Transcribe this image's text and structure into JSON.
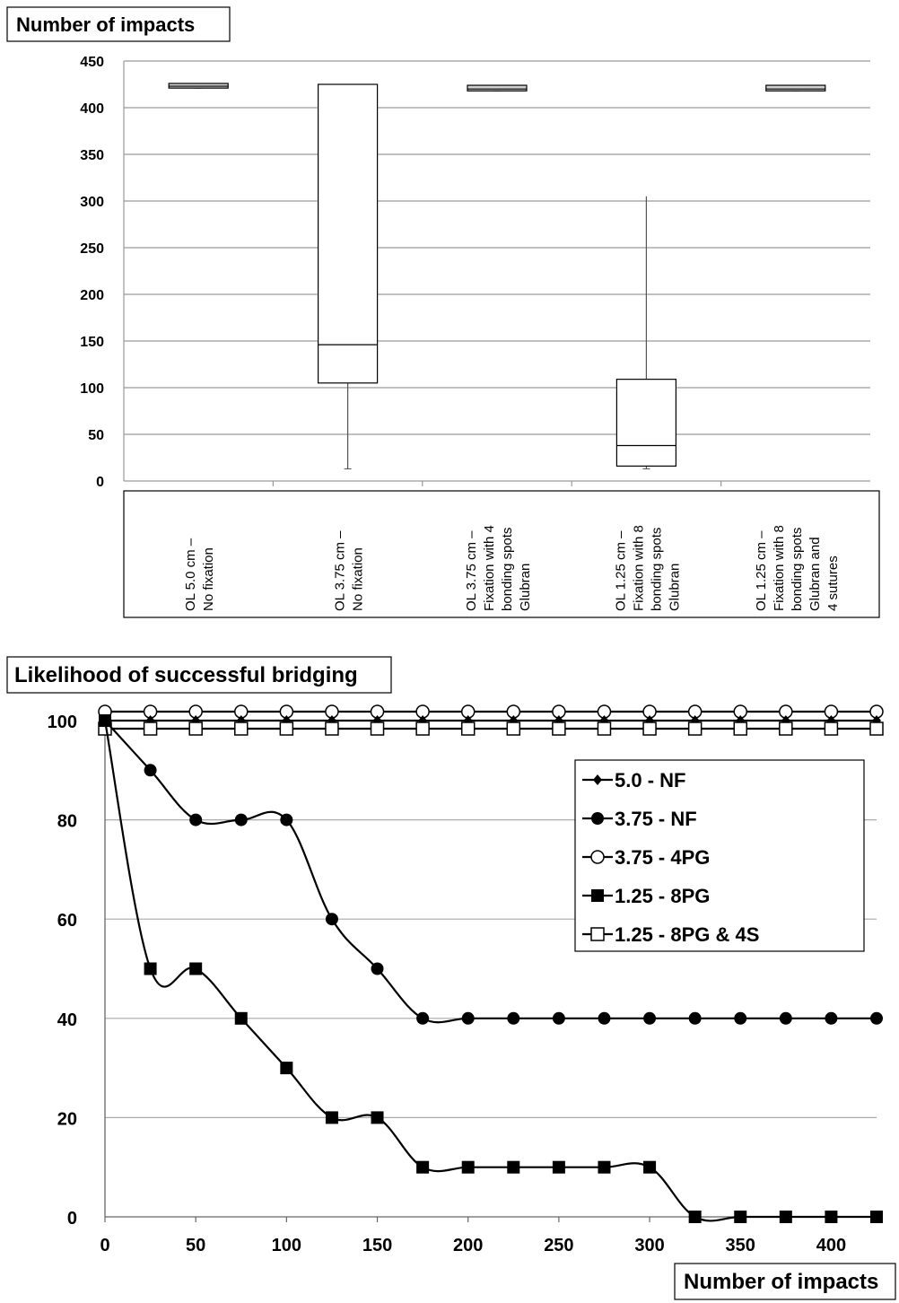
{
  "chart_data": [
    {
      "type": "box",
      "ylabel": "Number of impacts",
      "ylim": [
        0,
        450
      ],
      "yticks": [
        0,
        50,
        100,
        150,
        200,
        250,
        300,
        350,
        400,
        450
      ],
      "grid": true,
      "categories": [
        [
          "OL 5.0 cm –",
          "No fixation"
        ],
        [
          "OL 3.75 cm –",
          "No fixation"
        ],
        [
          "OL 3.75 cm –",
          "Fixation with 4",
          "bonding spots",
          "Glubran"
        ],
        [
          "OL 1.25 cm –",
          "Fixation with 8",
          "bonding spots",
          "Glubran"
        ],
        [
          "OL 1.25 cm –",
          "Fixation with 8",
          "bonding spots",
          "Glubran and",
          "4 sutures"
        ]
      ],
      "boxes": [
        {
          "min": 421,
          "q1": 421,
          "median": 423,
          "q3": 426,
          "max": 426
        },
        {
          "min": 13,
          "q1": 105,
          "median": 146,
          "q3": 425,
          "max": 425
        },
        {
          "min": 418,
          "q1": 418,
          "median": 420,
          "q3": 424,
          "max": 424
        },
        {
          "min": 13,
          "q1": 16,
          "median": 38,
          "q3": 109,
          "max": 305
        },
        {
          "min": 418,
          "q1": 418,
          "median": 420,
          "q3": 424,
          "max": 424
        }
      ]
    },
    {
      "type": "line",
      "ylabel": "Likelihood of successful bridging",
      "xlabel": "Number of impacts",
      "ylim": [
        0,
        100
      ],
      "yticks": [
        0,
        20,
        40,
        60,
        80,
        100
      ],
      "xlim": [
        0,
        425
      ],
      "xticks": [
        0,
        50,
        100,
        150,
        200,
        250,
        300,
        350,
        400
      ],
      "grid": true,
      "legend_position": "top-right",
      "x": [
        0,
        25,
        50,
        75,
        100,
        125,
        150,
        175,
        200,
        225,
        250,
        275,
        300,
        325,
        350,
        375,
        400,
        425
      ],
      "series": [
        {
          "name": "5.0 - NF",
          "marker": "diamond-filled",
          "values": [
            100,
            100,
            100,
            100,
            100,
            100,
            100,
            100,
            100,
            100,
            100,
            100,
            100,
            100,
            100,
            100,
            100,
            100
          ]
        },
        {
          "name": "3.75 - NF",
          "marker": "circle-filled",
          "values": [
            100,
            90,
            80,
            80,
            80,
            60,
            50,
            40,
            40,
            40,
            40,
            40,
            40,
            40,
            40,
            40,
            40,
            40
          ]
        },
        {
          "name": "3.75 - 4PG",
          "marker": "circle-open",
          "values": [
            100,
            100,
            100,
            100,
            100,
            100,
            100,
            100,
            100,
            100,
            100,
            100,
            100,
            100,
            100,
            100,
            100,
            100
          ]
        },
        {
          "name": "1.25 - 8PG",
          "marker": "square-filled",
          "values": [
            100,
            50,
            50,
            40,
            30,
            20,
            20,
            10,
            10,
            10,
            10,
            10,
            10,
            0,
            0,
            0,
            0,
            0
          ]
        },
        {
          "name": "1.25 - 8PG & 4S",
          "marker": "square-open",
          "values": [
            100,
            100,
            100,
            100,
            100,
            100,
            100,
            100,
            100,
            100,
            100,
            100,
            100,
            100,
            100,
            100,
            100,
            100
          ]
        }
      ]
    }
  ]
}
